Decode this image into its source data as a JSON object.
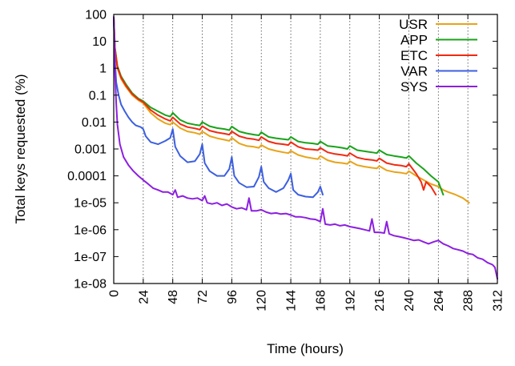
{
  "chart_data": {
    "type": "line",
    "title": "",
    "xlabel": "Time (hours)",
    "ylabel": "Total keys requested (%)",
    "x_scale": "linear",
    "y_scale": "log",
    "xlim": [
      0,
      312
    ],
    "ylim": [
      1e-08,
      100
    ],
    "x_ticks": [
      0,
      24,
      48,
      72,
      96,
      120,
      144,
      168,
      192,
      216,
      240,
      264,
      288,
      312
    ],
    "x_tick_labels": [
      "0",
      "24",
      "48",
      "72",
      "96",
      "120",
      "144",
      "168",
      "192",
      "216",
      "240",
      "264",
      "288",
      "312"
    ],
    "y_ticks": [
      100,
      10,
      1,
      0.1,
      0.01,
      0.001,
      0.0001,
      1e-05,
      1e-06,
      1e-07,
      1e-08
    ],
    "y_tick_labels": [
      "100",
      "10",
      "1",
      "0.1",
      "0.01",
      "0.001",
      "0.0001",
      "1e-05",
      "1e-06",
      "1e-07",
      "1e-08"
    ],
    "grid": "vertical dotted lines at each x tick",
    "legend_position": "top-right",
    "series": [
      {
        "name": "USR",
        "color": "#e8a317",
        "x": [
          0,
          1,
          3,
          6,
          10,
          15,
          20,
          24,
          30,
          36,
          42,
          46,
          48,
          54,
          60,
          66,
          70,
          72,
          78,
          84,
          90,
          94,
          96,
          102,
          108,
          114,
          118,
          120,
          126,
          132,
          138,
          142,
          144,
          150,
          156,
          162,
          166,
          168,
          174,
          180,
          186,
          190,
          192,
          198,
          204,
          210,
          214,
          216,
          222,
          228,
          234,
          238,
          240,
          246,
          252,
          258,
          264,
          268,
          272,
          278,
          284,
          289
        ],
        "y": [
          80,
          5,
          1.0,
          0.4,
          0.2,
          0.1,
          0.065,
          0.05,
          0.022,
          0.013,
          0.009,
          0.008,
          0.01,
          0.006,
          0.0045,
          0.004,
          0.0035,
          0.0045,
          0.003,
          0.0025,
          0.0022,
          0.002,
          0.0026,
          0.0016,
          0.0013,
          0.0012,
          0.0011,
          0.0014,
          0.001,
          0.00085,
          0.00075,
          0.0007,
          0.00085,
          0.0006,
          0.0005,
          0.00045,
          0.00042,
          0.00055,
          0.00038,
          0.00032,
          0.0003,
          0.00028,
          0.00035,
          0.00025,
          0.00022,
          0.0002,
          0.00019,
          0.00023,
          0.00016,
          0.00014,
          0.00013,
          0.00012,
          0.00015,
          0.0001,
          7e-05,
          5e-05,
          4e-05,
          3e-05,
          2.5e-05,
          2e-05,
          1.5e-05,
          1e-05
        ]
      },
      {
        "name": "APP",
        "color": "#1aa31a",
        "x": [
          0,
          1,
          3,
          6,
          10,
          15,
          20,
          24,
          30,
          36,
          42,
          46,
          48,
          54,
          60,
          66,
          70,
          72,
          78,
          84,
          90,
          94,
          96,
          102,
          108,
          114,
          118,
          120,
          126,
          132,
          138,
          142,
          144,
          150,
          156,
          162,
          166,
          168,
          174,
          180,
          186,
          190,
          192,
          198,
          204,
          210,
          214,
          216,
          222,
          228,
          234,
          238,
          240,
          246,
          252,
          258,
          264,
          268
        ],
        "y": [
          80,
          6,
          1.2,
          0.5,
          0.25,
          0.12,
          0.075,
          0.06,
          0.035,
          0.025,
          0.018,
          0.016,
          0.022,
          0.012,
          0.009,
          0.008,
          0.0075,
          0.01,
          0.007,
          0.006,
          0.0055,
          0.005,
          0.0068,
          0.0045,
          0.0038,
          0.0034,
          0.0032,
          0.0042,
          0.0028,
          0.0025,
          0.0023,
          0.0022,
          0.0028,
          0.0019,
          0.0017,
          0.0016,
          0.0015,
          0.0019,
          0.0013,
          0.0012,
          0.0011,
          0.001,
          0.0013,
          0.0009,
          0.00082,
          0.00075,
          0.0007,
          0.0009,
          0.00062,
          0.00055,
          0.0005,
          0.00046,
          0.00055,
          0.0003,
          0.00018,
          0.0001,
          6e-05,
          2e-05
        ]
      },
      {
        "name": "ETC",
        "color": "#f02a10",
        "x": [
          0,
          1,
          3,
          6,
          10,
          15,
          20,
          24,
          30,
          36,
          42,
          46,
          48,
          54,
          60,
          66,
          70,
          72,
          78,
          84,
          90,
          94,
          96,
          102,
          108,
          114,
          118,
          120,
          126,
          132,
          138,
          142,
          144,
          150,
          156,
          162,
          166,
          168,
          174,
          180,
          186,
          190,
          192,
          198,
          204,
          210,
          214,
          216,
          222,
          228,
          234,
          238,
          240,
          246,
          250,
          252,
          254,
          258,
          262
        ],
        "y": [
          80,
          5.5,
          1.1,
          0.45,
          0.22,
          0.11,
          0.07,
          0.055,
          0.028,
          0.018,
          0.013,
          0.011,
          0.015,
          0.0085,
          0.0065,
          0.0058,
          0.0052,
          0.007,
          0.0048,
          0.0041,
          0.0037,
          0.0034,
          0.0045,
          0.003,
          0.0025,
          0.0023,
          0.0021,
          0.0028,
          0.0019,
          0.0016,
          0.0015,
          0.0014,
          0.0018,
          0.0012,
          0.001,
          0.00095,
          0.0009,
          0.0011,
          0.00075,
          0.00065,
          0.0006,
          0.00055,
          0.0007,
          0.00048,
          0.00042,
          0.00039,
          0.00036,
          0.00045,
          0.0003,
          0.00026,
          0.00024,
          0.00022,
          0.00028,
          0.00012,
          6e-05,
          3e-05,
          6e-05,
          4e-05,
          2e-05
        ]
      },
      {
        "name": "VAR",
        "color": "#3c5fe0",
        "x": [
          0,
          1,
          2,
          4,
          6,
          9,
          12,
          15,
          18,
          22,
          24,
          26,
          30,
          36,
          42,
          46,
          48,
          50,
          54,
          60,
          66,
          70,
          72,
          74,
          78,
          84,
          90,
          94,
          96,
          98,
          102,
          108,
          114,
          118,
          120,
          122,
          126,
          132,
          138,
          142,
          144,
          146,
          150,
          156,
          162,
          166,
          168,
          170
        ],
        "y": [
          80,
          2,
          0.3,
          0.1,
          0.045,
          0.025,
          0.015,
          0.01,
          0.0075,
          0.0065,
          0.0055,
          0.003,
          0.0018,
          0.0015,
          0.002,
          0.0026,
          0.0055,
          0.0012,
          0.00055,
          0.00032,
          0.00035,
          0.00065,
          0.0015,
          0.0003,
          0.00015,
          0.0001,
          0.0001,
          0.00018,
          0.0005,
          0.0001,
          5.5e-05,
          3.8e-05,
          4e-05,
          9e-05,
          0.00022,
          6e-05,
          3.5e-05,
          2.5e-05,
          3.5e-05,
          7e-05,
          0.00012,
          3e-05,
          2e-05,
          1.7e-05,
          1.6e-05,
          2.5e-05,
          4e-05,
          2e-05
        ]
      },
      {
        "name": "SYS",
        "color": "#8c1fe0",
        "x": [
          0,
          0.5,
          1,
          2,
          3,
          5,
          8,
          12,
          16,
          20,
          24,
          28,
          32,
          36,
          40,
          44,
          48,
          50,
          52,
          56,
          60,
          64,
          68,
          72,
          74,
          76,
          80,
          84,
          88,
          92,
          96,
          100,
          104,
          108,
          110,
          112,
          116,
          120,
          124,
          128,
          132,
          136,
          140,
          144,
          148,
          152,
          156,
          160,
          164,
          166,
          168,
          170,
          172,
          176,
          180,
          184,
          188,
          192,
          196,
          200,
          204,
          208,
          210,
          212,
          216,
          220,
          222,
          224,
          228,
          232,
          236,
          240,
          244,
          248,
          252,
          256,
          260,
          264,
          268,
          272,
          276,
          280,
          284,
          288,
          292,
          296,
          300,
          304,
          308,
          310,
          312
        ],
        "y": [
          80,
          10,
          0.8,
          0.05,
          0.008,
          0.0015,
          0.0005,
          0.00025,
          0.00015,
          0.0001,
          7e-05,
          5e-05,
          3.5e-05,
          3e-05,
          2.5e-05,
          2.5e-05,
          2e-05,
          3e-05,
          1.6e-05,
          1.8e-05,
          1.5e-05,
          1.4e-05,
          1.5e-05,
          1.2e-05,
          1.8e-05,
          1e-05,
          9e-06,
          1e-05,
          8e-06,
          9e-06,
          7e-06,
          6e-06,
          6.5e-06,
          5.5e-06,
          1.5e-05,
          5e-06,
          5e-06,
          5.5e-06,
          4.5e-06,
          4e-06,
          4.2e-06,
          3.8e-06,
          4e-06,
          3.5e-06,
          3e-06,
          3e-06,
          2.8e-06,
          2.5e-06,
          2.4e-06,
          2.2e-06,
          2e-06,
          6e-06,
          1.6e-06,
          1.5e-06,
          1.6e-06,
          1.4e-06,
          1.5e-06,
          1.3e-06,
          1.2e-06,
          1.1e-06,
          1e-06,
          9e-07,
          2.5e-06,
          8e-07,
          8e-07,
          7.5e-07,
          2e-06,
          7e-07,
          6e-07,
          5.5e-07,
          5e-07,
          4.5e-07,
          4e-07,
          4.2e-07,
          3.5e-07,
          3e-07,
          3.5e-07,
          4e-07,
          3e-07,
          2.5e-07,
          2e-07,
          1.8e-07,
          1.6e-07,
          1.3e-07,
          1.2e-07,
          9e-08,
          8e-08,
          6e-08,
          5e-08,
          4e-08,
          1.5e-08
        ]
      }
    ]
  }
}
